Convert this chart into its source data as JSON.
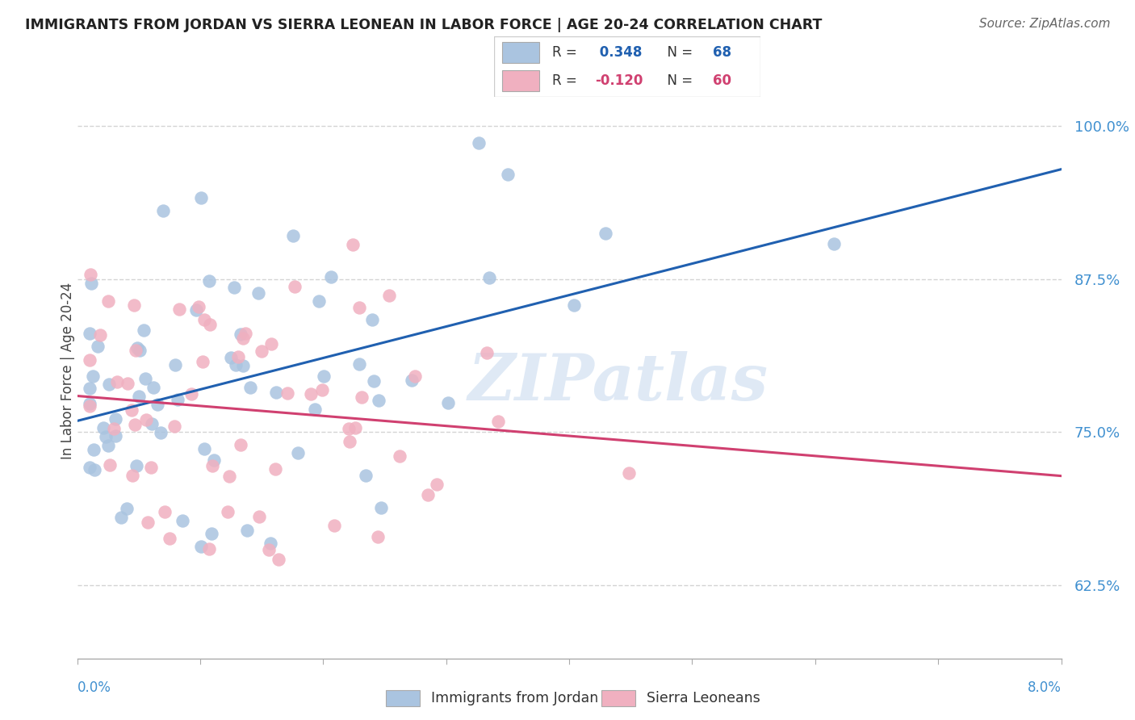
{
  "title": "IMMIGRANTS FROM JORDAN VS SIERRA LEONEAN IN LABOR FORCE | AGE 20-24 CORRELATION CHART",
  "source": "Source: ZipAtlas.com",
  "ylabel": "In Labor Force | Age 20-24",
  "y_ticks_labels": [
    "62.5%",
    "75.0%",
    "87.5%",
    "100.0%"
  ],
  "y_ticks_vals": [
    0.625,
    0.75,
    0.875,
    1.0
  ],
  "x_lim": [
    0.0,
    0.08
  ],
  "y_lim": [
    0.565,
    1.035
  ],
  "blue_color": "#aac4e0",
  "blue_line_color": "#2060b0",
  "pink_color": "#f0b0c0",
  "pink_line_color": "#d04070",
  "jordan_label": "Immigrants from Jordan",
  "sierra_label": "Sierra Leoneans",
  "watermark": "ZIPatlas",
  "background_color": "#ffffff",
  "grid_color": "#d0d0d0",
  "blue_r": "0.348",
  "blue_n": "68",
  "pink_r": "-0.120",
  "pink_n": "60",
  "blue_label_color": "#2060b0",
  "pink_label_color": "#d04070",
  "tick_label_color": "#4090d0",
  "jordan_seed": 10,
  "sierra_seed": 20
}
